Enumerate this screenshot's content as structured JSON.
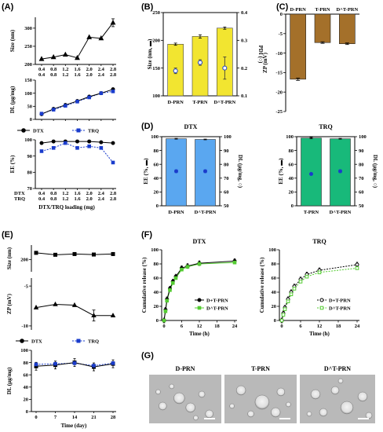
{
  "colors": {
    "black": "#000000",
    "blue": "#1a3ccc",
    "yellow": "#f2e530",
    "brown": "#a4702a",
    "lightblue": "#5aa7f0",
    "teal": "#18b97a",
    "green": "#55cc33",
    "tem_bg": "#b9b9b9"
  },
  "chart_data": [
    {
      "panel": "(A)",
      "type": "line",
      "x": [
        0.4,
        0.8,
        1.2,
        1.6,
        2.0,
        2.4,
        2.8
      ],
      "xtick_rows": {
        "DTX": [
          "0.4",
          "0.8",
          "1.2",
          "1.6",
          "2.0",
          "2.4",
          "2.8"
        ],
        "TRQ": [
          "0.4",
          "0.8",
          "1.2",
          "1.6",
          "2.0",
          "2.4",
          "2.8"
        ]
      },
      "xlabel": "DTX/TRQ loading (mg)",
      "subplots": [
        {
          "name": "size",
          "ylabel": "Size (nm)",
          "ylim": [
            200,
            330
          ],
          "yticks": [
            "200",
            "250",
            "300"
          ],
          "series": [
            {
              "name": "size",
              "marker": "triangle",
              "values": [
                215,
                220,
                227,
                218,
                275,
                272,
                315
              ]
            }
          ]
        },
        {
          "name": "dl",
          "ylabel": "DL (µg/mg)",
          "ylim": [
            0,
            140
          ],
          "yticks": [
            "0",
            "50",
            "100",
            "150"
          ],
          "series": [
            {
              "name": "DTX",
              "values": [
                20,
                40,
                55,
                70,
                87,
                100,
                115
              ]
            },
            {
              "name": "TRQ",
              "values": [
                22,
                37,
                52,
                68,
                84,
                100,
                107
              ]
            }
          ]
        },
        {
          "name": "ee",
          "ylabel": "EE (%)",
          "ylim": [
            70,
            100
          ],
          "yticks": [
            "70",
            "80",
            "90",
            "100"
          ],
          "series": [
            {
              "name": "DTX",
              "values": [
                98,
                99,
                99,
                99,
                99,
                98.5,
                98
              ]
            },
            {
              "name": "TRQ",
              "values": [
                93,
                95,
                98,
                95,
                96,
                95,
                86
              ]
            }
          ]
        }
      ],
      "legend": [
        "DTX",
        "TRQ"
      ]
    },
    {
      "panel": "(B)",
      "type": "bar",
      "categories": [
        "D-PRN",
        "T-PRN",
        "D^T-PRN"
      ],
      "bars": {
        "name": "Size",
        "values": [
          193,
          207,
          222
        ],
        "errors": [
          2,
          3,
          2
        ]
      },
      "points": {
        "name": "PDI",
        "values": [
          0.19,
          0.22,
          0.2
        ],
        "errors": [
          0.01,
          0.01,
          0.04
        ]
      },
      "ylabel": "Size (nm, ▬)",
      "ylim": [
        100,
        250
      ],
      "yticks": [
        "100",
        "150",
        "200",
        "250"
      ],
      "y2label": "PDI (○)",
      "y2lim": [
        0.1,
        0.4
      ],
      "y2ticks": [
        "0.1",
        "0.2",
        "0.3",
        "0.4"
      ]
    },
    {
      "panel": "(C)",
      "type": "bar",
      "categories": [
        "D-PRN",
        "T-PRN",
        "D^T-PRN"
      ],
      "values": [
        -16.7,
        -7.3,
        -7.6
      ],
      "errors": [
        0.3,
        0.2,
        0.2
      ],
      "ylabel": "ZP (mV)",
      "ylim": [
        -25,
        0
      ],
      "yticks": [
        "0",
        "-5",
        "-10",
        "-15",
        "-20",
        "-25"
      ]
    },
    {
      "panel": "(D)",
      "type": "bar",
      "title": "DTX",
      "categories": [
        "D-PRN",
        "D^T-PRN"
      ],
      "bars": {
        "name": "EE",
        "values": [
          97,
          96
        ],
        "errors": [
          0.5,
          0.5
        ]
      },
      "points": {
        "name": "DL",
        "values": [
          75,
          75
        ],
        "errors": [
          1,
          1
        ]
      },
      "ylabel": "EE (%, ▬)",
      "ylim": [
        0,
        100
      ],
      "yticks": [
        "0",
        "20",
        "40",
        "60",
        "80",
        "100"
      ],
      "y2label": "DL (µg/mg, ○)",
      "y2lim": [
        50,
        100
      ],
      "y2ticks": [
        "50",
        "60",
        "70",
        "80",
        "90",
        "100"
      ]
    },
    {
      "panel": "(D)",
      "type": "bar",
      "title": "TRQ",
      "categories": [
        "T-PRN",
        "D^T-PRN"
      ],
      "bars": {
        "name": "EE",
        "values": [
          98,
          97
        ],
        "errors": [
          1,
          0.5
        ]
      },
      "points": {
        "name": "DL",
        "values": [
          73,
          75
        ],
        "errors": [
          0.5,
          1
        ]
      },
      "ylabel": "EE (%, ▬)",
      "ylim": [
        0,
        100
      ],
      "yticks": [
        "0",
        "20",
        "40",
        "60",
        "80",
        "100"
      ],
      "y2label": "DL (µg/mg, ○)",
      "y2lim": [
        50,
        100
      ],
      "y2ticks": [
        "50",
        "60",
        "70",
        "80",
        "90",
        "100"
      ]
    },
    {
      "panel": "(E)",
      "type": "line",
      "x": [
        0,
        7,
        14,
        21,
        28
      ],
      "xticks": [
        "0",
        "7",
        "14",
        "21",
        "28"
      ],
      "xlabel": "Time (day)",
      "subplots": [
        {
          "name": "size",
          "ylabel": "Size (nm)",
          "ylim": [
            150,
            260
          ],
          "yticks": [
            "200"
          ],
          "series": [
            {
              "name": "size",
              "marker": "square",
              "values": [
                228,
                220,
                223,
                221,
                223
              ]
            }
          ]
        },
        {
          "name": "zp",
          "ylabel": "ZP (mV)",
          "ylim": [
            -10,
            -4
          ],
          "yticks": [
            "-5",
            "-10"
          ],
          "series": [
            {
              "name": "zp",
              "marker": "triangle",
              "values": [
                -7.7,
                -7.3,
                -7.4,
                -8.7,
                -8.7
              ]
            }
          ]
        },
        {
          "name": "dl",
          "ylabel": "DL (µg/mg)",
          "ylim": [
            0,
            100
          ],
          "yticks": [
            "0",
            "20",
            "40",
            "60",
            "80",
            "100"
          ],
          "series": [
            {
              "name": "DTX",
              "values": [
                74,
                76,
                80,
                73,
                78
              ]
            },
            {
              "name": "TRQ",
              "values": [
                77,
                78,
                79,
                75,
                79
              ]
            }
          ]
        }
      ],
      "legend": [
        "DTX",
        "TRQ"
      ]
    },
    {
      "panel": "(F)",
      "type": "line",
      "title": "DTX",
      "x": [
        0,
        0.5,
        1,
        2,
        3,
        4,
        6,
        8,
        12,
        24
      ],
      "xticks": [
        "0",
        "6",
        "12",
        "18",
        "24"
      ],
      "xlim": [
        0,
        24
      ],
      "ylim": [
        0,
        100
      ],
      "yticks": [
        "0",
        "20",
        "40",
        "60",
        "80",
        "100"
      ],
      "xlabel": "Time (h)",
      "ylabel": "Cumulative release (%)",
      "series": [
        {
          "name": "D+T-PRN",
          "values": [
            0,
            15,
            30,
            45,
            55,
            62,
            74,
            77,
            81,
            84
          ]
        },
        {
          "name": "D^T-PRN",
          "values": [
            0,
            13,
            28,
            43,
            53,
            60,
            72,
            76,
            80,
            82
          ]
        }
      ]
    },
    {
      "panel": "(F)",
      "type": "line",
      "title": "TRQ",
      "x": [
        0,
        0.5,
        1,
        2,
        3,
        4,
        6,
        8,
        12,
        24
      ],
      "xticks": [
        "0",
        "6",
        "12",
        "18",
        "24"
      ],
      "xlim": [
        0,
        24
      ],
      "ylim": [
        0,
        100
      ],
      "yticks": [
        "0",
        "20",
        "40",
        "60",
        "80",
        "100"
      ],
      "xlabel": "Time (h)",
      "ylabel": "Cumulative release (%)",
      "series": [
        {
          "name": "D+T-PRN",
          "values": [
            0,
            10,
            18,
            30,
            40,
            48,
            58,
            65,
            71,
            79
          ]
        },
        {
          "name": "D^T-PRN",
          "values": [
            0,
            8,
            16,
            27,
            37,
            45,
            55,
            62,
            68,
            74
          ]
        }
      ]
    }
  ],
  "panel_g": {
    "label": "(G)",
    "images": [
      "D-PRN",
      "T-PRN",
      "D^T-PRN"
    ]
  },
  "labels": {
    "a": "(A)",
    "b": "(B)",
    "c": "(C)",
    "d": "(D)",
    "e": "(E)",
    "f": "(F)",
    "g": "(G)"
  }
}
